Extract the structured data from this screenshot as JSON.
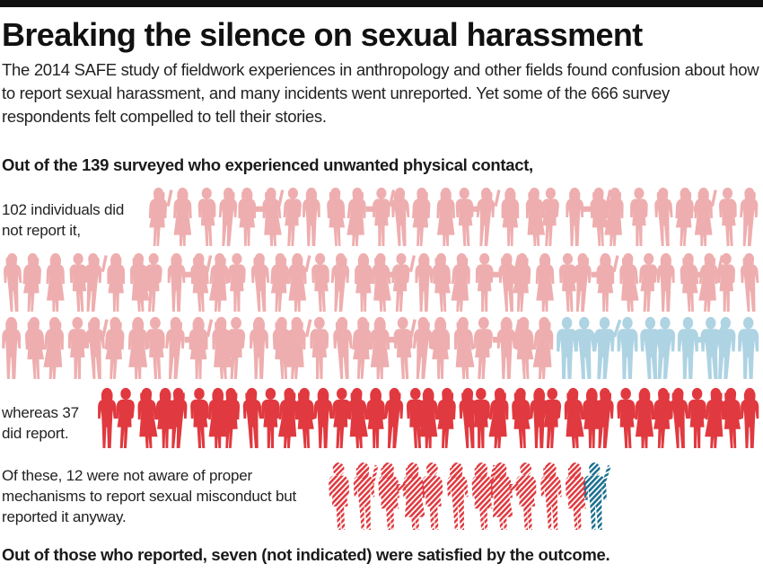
{
  "header": {
    "title": "Breaking the silence on sexual harassment",
    "intro": "The 2014 SAFE study of fieldwork experiences in anthropology and other fields found confusion about how to report sexual harassment, and many incidents went unreported. Yet some of the 666 survey respondents felt compelled to tell their stories."
  },
  "text": {
    "lead": "Out of the 139 surveyed who experienced unwanted physical contact,",
    "not_reported": "102 individuals did not report it,",
    "reported": "whereas 37 did report.",
    "not_aware": "Of these, 12 were not aware of proper mechanisms to report sexual misconduct but reported it anyway.",
    "footer": "Out of those who reported, seven (not indicated) were satisfied by the outcome."
  },
  "colors": {
    "not_reported_female": "#eeaeaf",
    "not_reported_male": "#aed3e3",
    "reported_female": "#e0393f",
    "reported_male": "#1a6f8e"
  },
  "chart_data": {
    "type": "pictogram",
    "unit": "person",
    "total_respondents": 666,
    "experienced_unwanted_contact": 139,
    "groups": [
      {
        "key": "not_reported",
        "count": 102,
        "female": 92,
        "male": 10,
        "style": "solid-light"
      },
      {
        "key": "reported",
        "count": 37,
        "style": "solid-dark"
      }
    ],
    "not_aware_subset": {
      "count": 12,
      "female": 11,
      "male": 1,
      "style": "hatched"
    },
    "satisfied_with_outcome": 7
  }
}
